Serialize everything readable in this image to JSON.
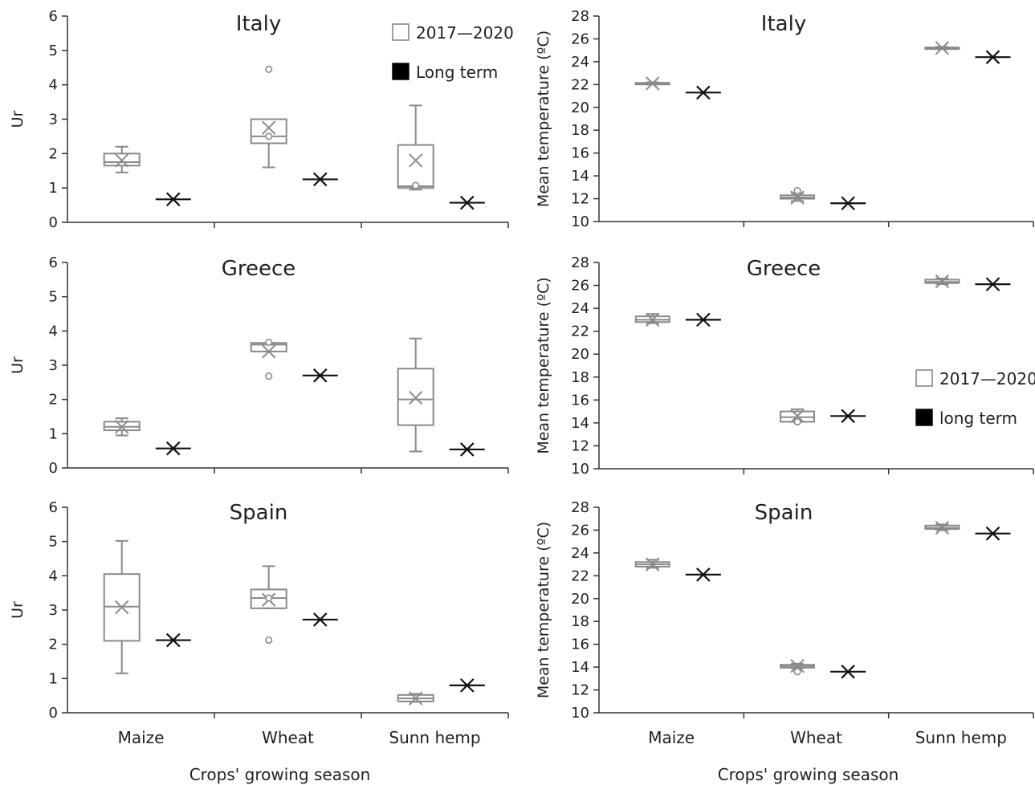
{
  "chart_data": [
    {
      "type": "box",
      "title": "Italy",
      "ylabel": "Ur",
      "xlabel": "",
      "ylim": [
        0,
        6
      ],
      "yticks": [
        0,
        1,
        2,
        3,
        4,
        5,
        6
      ],
      "categories": [
        "Maize",
        "Wheat",
        "Sunn hemp"
      ],
      "legend": [
        {
          "label": "2017—2020",
          "swatch": "open"
        },
        {
          "label": "Long term",
          "swatch": "filled"
        }
      ],
      "legend_placement": "top-right",
      "series": [
        {
          "role": "2017-2020",
          "boxes": [
            {
              "min": 1.45,
              "q1": 1.65,
              "median": 1.75,
              "q3": 2.0,
              "max": 2.2,
              "mean": 1.8,
              "outliers": []
            },
            {
              "min": 1.6,
              "q1": 2.3,
              "median": 2.5,
              "q3": 3.0,
              "max": 3.0,
              "mean": 2.75,
              "outliers": [
                4.45,
                2.5
              ]
            },
            {
              "min": 0.95,
              "q1": 1.0,
              "median": 1.05,
              "q3": 2.25,
              "max": 3.4,
              "mean": 1.8,
              "outliers": [
                1.07
              ]
            }
          ]
        },
        {
          "role": "long term",
          "values": [
            0.67,
            1.25,
            0.57
          ]
        }
      ]
    },
    {
      "type": "box",
      "title": "Italy",
      "ylabel": "Mean temperature (ºC)",
      "xlabel": "",
      "ylim": [
        10,
        28
      ],
      "yticks": [
        10,
        12,
        14,
        16,
        18,
        20,
        22,
        24,
        26,
        28
      ],
      "categories": [
        "Maize",
        "Wheat",
        "Sunn hemp"
      ],
      "series": [
        {
          "role": "2017-2020",
          "boxes": [
            {
              "min": 22.0,
              "q1": 22.05,
              "median": 22.1,
              "q3": 22.15,
              "max": 22.2,
              "mean": 22.1,
              "outliers": []
            },
            {
              "min": 11.8,
              "q1": 12.0,
              "median": 12.1,
              "q3": 12.3,
              "max": 12.5,
              "mean": 12.1,
              "outliers": [
                12.7
              ]
            },
            {
              "min": 25.1,
              "q1": 25.15,
              "median": 25.2,
              "q3": 25.25,
              "max": 25.3,
              "mean": 25.2,
              "outliers": []
            }
          ]
        },
        {
          "role": "long term",
          "values": [
            21.3,
            11.6,
            24.4
          ]
        }
      ]
    },
    {
      "type": "box",
      "title": "Greece",
      "ylabel": "Ur",
      "xlabel": "",
      "ylim": [
        0,
        6
      ],
      "yticks": [
        0,
        1,
        2,
        3,
        4,
        5,
        6
      ],
      "categories": [
        "Maize",
        "Wheat",
        "Sunn hemp"
      ],
      "series": [
        {
          "role": "2017-2020",
          "boxes": [
            {
              "min": 0.95,
              "q1": 1.1,
              "median": 1.2,
              "q3": 1.35,
              "max": 1.45,
              "mean": 1.2,
              "outliers": []
            },
            {
              "min": 3.4,
              "q1": 3.4,
              "median": 3.6,
              "q3": 3.65,
              "max": 3.65,
              "mean": 3.4,
              "outliers": [
                2.68,
                3.67
              ]
            },
            {
              "min": 0.48,
              "q1": 1.25,
              "median": 2.0,
              "q3": 2.9,
              "max": 3.78,
              "mean": 2.05,
              "outliers": []
            }
          ]
        },
        {
          "role": "long term",
          "values": [
            0.57,
            2.7,
            0.54
          ]
        }
      ]
    },
    {
      "type": "box",
      "title": "Greece",
      "ylabel": "Mean temperature (ºC)",
      "xlabel": "",
      "ylim": [
        10,
        28
      ],
      "yticks": [
        10,
        12,
        14,
        16,
        18,
        20,
        22,
        24,
        26,
        28
      ],
      "categories": [
        "Maize",
        "Wheat",
        "Sunn hemp"
      ],
      "legend": [
        {
          "label": "2017—2020",
          "swatch": "open"
        },
        {
          "label": "long term",
          "swatch": "filled"
        }
      ],
      "legend_placement": "right",
      "series": [
        {
          "role": "2017-2020",
          "boxes": [
            {
              "min": 22.7,
              "q1": 22.8,
              "median": 23.0,
              "q3": 23.3,
              "max": 23.5,
              "mean": 23.0,
              "outliers": []
            },
            {
              "min": 14.1,
              "q1": 14.1,
              "median": 14.5,
              "q3": 15.0,
              "max": 15.2,
              "mean": 14.6,
              "outliers": [
                14.1
              ]
            },
            {
              "min": 26.1,
              "q1": 26.2,
              "median": 26.3,
              "q3": 26.5,
              "max": 26.6,
              "mean": 26.35,
              "outliers": []
            }
          ]
        },
        {
          "role": "long term",
          "values": [
            23.0,
            14.6,
            26.1
          ]
        }
      ]
    },
    {
      "type": "box",
      "title": "Spain",
      "ylabel": "Ur",
      "xlabel": "Crops' growing season",
      "ylim": [
        0,
        6
      ],
      "yticks": [
        0,
        1,
        2,
        3,
        4,
        5,
        6
      ],
      "categories": [
        "Maize",
        "Wheat",
        "Sunn hemp"
      ],
      "series": [
        {
          "role": "2017-2020",
          "boxes": [
            {
              "min": 1.15,
              "q1": 2.1,
              "median": 3.1,
              "q3": 4.05,
              "max": 5.02,
              "mean": 3.08,
              "outliers": []
            },
            {
              "min": 3.05,
              "q1": 3.05,
              "median": 3.35,
              "q3": 3.6,
              "max": 4.28,
              "mean": 3.3,
              "outliers": [
                2.12,
                3.35
              ]
            },
            {
              "min": 0.32,
              "q1": 0.33,
              "median": 0.42,
              "q3": 0.52,
              "max": 0.55,
              "mean": 0.42,
              "outliers": []
            }
          ]
        },
        {
          "role": "long term",
          "values": [
            2.12,
            2.72,
            0.8
          ]
        }
      ]
    },
    {
      "type": "box",
      "title": "Spain",
      "ylabel": "Mean temperature (ºC)",
      "xlabel": "Crops' growing season",
      "ylim": [
        10,
        28
      ],
      "yticks": [
        10,
        12,
        14,
        16,
        18,
        20,
        22,
        24,
        26,
        28
      ],
      "categories": [
        "Maize",
        "Wheat",
        "Sunn hemp"
      ],
      "series": [
        {
          "role": "2017-2020",
          "boxes": [
            {
              "min": 22.7,
              "q1": 22.8,
              "median": 23.0,
              "q3": 23.2,
              "max": 23.4,
              "mean": 23.0,
              "outliers": []
            },
            {
              "min": 13.9,
              "q1": 13.95,
              "median": 14.1,
              "q3": 14.2,
              "max": 14.3,
              "mean": 14.1,
              "outliers": [
                13.6
              ]
            },
            {
              "min": 26.0,
              "q1": 26.1,
              "median": 26.2,
              "q3": 26.4,
              "max": 26.5,
              "mean": 26.2,
              "outliers": []
            }
          ]
        },
        {
          "role": "long term",
          "values": [
            22.1,
            13.6,
            25.7
          ]
        }
      ]
    }
  ],
  "colors": {
    "box": "#8a8a8a",
    "long_term": "#111111",
    "axis": "#333333"
  }
}
